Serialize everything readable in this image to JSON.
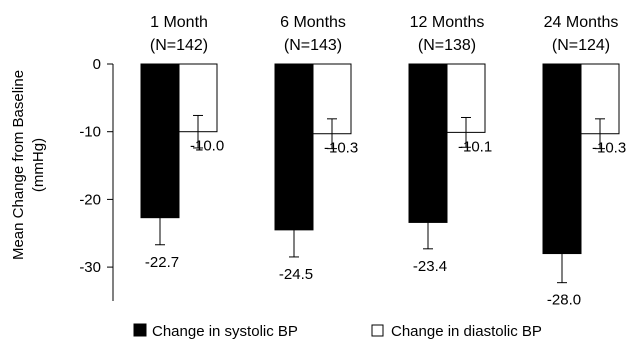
{
  "chart_data": {
    "type": "bar",
    "categories": [
      {
        "line1": "1 Month",
        "line2": "(N=142)"
      },
      {
        "line1": "6 Months",
        "line2": "(N=143)"
      },
      {
        "line1": "12 Months",
        "line2": "(N=138)"
      },
      {
        "line1": "24 Months",
        "line2": "(N=124)"
      }
    ],
    "series": [
      {
        "name": "Change in systolic BP",
        "color": "#000000",
        "values": [
          -22.7,
          -24.5,
          -23.4,
          -28.0
        ],
        "error": [
          4.0,
          4.0,
          3.9,
          4.3
        ]
      },
      {
        "name": "Change in diastolic BP",
        "color": "#ffffff",
        "values": [
          -10.0,
          -10.3,
          -10.1,
          -10.3
        ],
        "error": [
          2.4,
          2.2,
          2.2,
          2.2
        ]
      }
    ],
    "data_labels": [
      [
        "-22.7",
        "-24.5",
        "-23.4",
        "-28.0"
      ],
      [
        "-10.0",
        "-10.3",
        "-10.1",
        "-10.3"
      ]
    ],
    "ylabel_lines": [
      "Mean Change from Baseline",
      "(mmHg)"
    ],
    "ylim": [
      -35,
      0
    ],
    "yticks": [
      0,
      -10,
      -20,
      -30
    ],
    "ytick_labels": [
      "0",
      "-10",
      "-20",
      "-30"
    ],
    "grid": false,
    "legend_position": "bottom"
  }
}
